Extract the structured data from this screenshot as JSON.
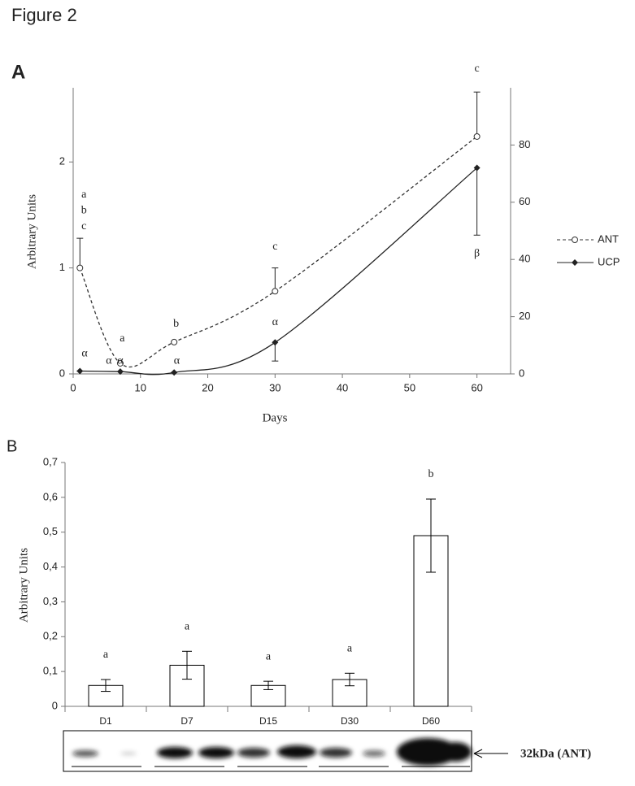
{
  "figure_title": "Figure 2",
  "chart_data": [
    {
      "type": "line",
      "panel": "A",
      "xlabel": "Days",
      "ylabel": "Arbitrary Units",
      "xlim": [
        0,
        65
      ],
      "xticks": [
        0,
        10,
        20,
        30,
        40,
        50,
        60
      ],
      "ylim": [
        0,
        2.7
      ],
      "yticks": [
        0,
        1,
        2
      ],
      "y2lim": [
        0,
        100
      ],
      "y2ticks": [
        0,
        20,
        40,
        60,
        80
      ],
      "legend": "right",
      "series": [
        {
          "name": "ANT",
          "color": "#333333",
          "dashed": true,
          "marker": "circle",
          "error_direction": "up",
          "x": [
            1,
            7,
            15,
            30,
            60
          ],
          "values": [
            1.0,
            0.1,
            0.3,
            0.78,
            2.24
          ],
          "errors": [
            0.28,
            0,
            0,
            0.22,
            0.42
          ]
        },
        {
          "name": "UCP",
          "color": "#222222",
          "dashed": false,
          "marker": "diamond",
          "error_direction": "down",
          "axis": "y2",
          "x": [
            1,
            7,
            15,
            30,
            60
          ],
          "values": [
            1,
            0.8,
            0.5,
            11,
            72
          ],
          "errors": [
            0,
            0,
            0,
            6.5,
            23.5
          ]
        }
      ],
      "annotations": [
        {
          "text": "a",
          "x": 1.6,
          "y": 1.69
        },
        {
          "text": "b",
          "x": 1.6,
          "y": 1.54
        },
        {
          "text": "c",
          "x": 1.6,
          "y": 1.39
        },
        {
          "text": "a",
          "x": 7.3,
          "y": 0.33
        },
        {
          "text": "b",
          "x": 15.3,
          "y": 0.47
        },
        {
          "text": "c",
          "x": 30,
          "y": 1.2
        },
        {
          "text": "c",
          "x": 60,
          "y": 2.88
        },
        {
          "text": "α",
          "x": 1.7,
          "y": 7,
          "axis": "y2"
        },
        {
          "text": "α",
          "x": 5.3,
          "y": 4.5,
          "axis": "y2"
        },
        {
          "text": "α",
          "x": 7,
          "y": 4.5,
          "axis": "y2"
        },
        {
          "text": "α",
          "x": 15.4,
          "y": 4.5,
          "axis": "y2"
        },
        {
          "text": "α",
          "x": 30,
          "y": 18,
          "axis": "y2"
        },
        {
          "text": "β",
          "x": 60,
          "y": 42,
          "axis": "y2"
        }
      ]
    },
    {
      "type": "bar",
      "panel": "B",
      "ylabel": "Arbitrary Units",
      "color": "#ffffff",
      "edge": "#000000",
      "categories": [
        "D1",
        "D7",
        "D15",
        "D30",
        "D60"
      ],
      "values": [
        0.06,
        0.118,
        0.06,
        0.077,
        0.49
      ],
      "errors": [
        0.017,
        0.04,
        0.012,
        0.018,
        0.105
      ],
      "group_letters": [
        "a",
        "a",
        "a",
        "a",
        "b"
      ],
      "ylim": [
        0,
        0.7
      ],
      "yticks": [
        0,
        {
          "value": 0.1,
          "label": "0,1"
        },
        {
          "value": 0.2,
          "label": "0,2"
        },
        {
          "value": 0.3,
          "label": "0,3"
        },
        {
          "value": 0.4,
          "label": "0,4"
        },
        {
          "value": 0.5,
          "label": "0,5"
        },
        {
          "value": 0.6,
          "label": "0,6"
        },
        {
          "value": 0.7,
          "label": "0,7"
        }
      ],
      "blot_label": "32kDa (ANT)"
    }
  ]
}
